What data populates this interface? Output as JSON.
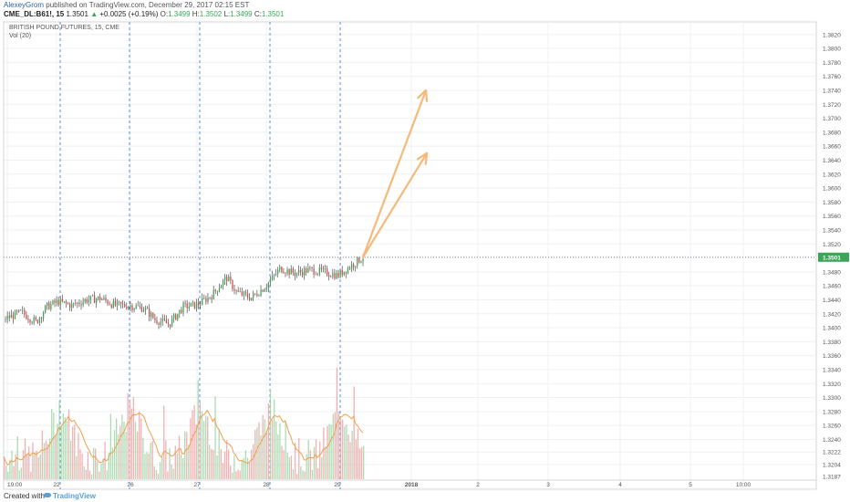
{
  "header": {
    "author": "AlexeyGrom",
    "published": " published on TradingView.com, December 29, 2017 02:15 EST",
    "symbol": "CME_DL:B61!, 15",
    "last": "1.3501",
    "change_arrow": "▲",
    "change": "+0.0025 (+0.19%)",
    "o_label": "O:",
    "o_val": "1.3499",
    "h_label": "H:",
    "h_val": "1.3502",
    "l_label": "L:",
    "l_val": "1.3499",
    "c_label": "C:",
    "c_val": "1.3501"
  },
  "legend": {
    "title": "BRITISH POUND FUTURES, 15, CME",
    "vol": "Vol (20)"
  },
  "footer": {
    "created": "Created with",
    "brand": "TradingView"
  },
  "chart_data": {
    "type": "candlestick",
    "title": "BRITISH POUND FUTURES, 15, CME",
    "ylim": [
      1.3187,
      1.3838
    ],
    "y_ticks": [
      1.3204,
      1.3222,
      1.324,
      1.326,
      1.328,
      1.33,
      1.332,
      1.334,
      1.336,
      1.338,
      1.34,
      1.342,
      1.344,
      1.346,
      1.348,
      1.35,
      1.352,
      1.354,
      1.356,
      1.358,
      1.36,
      1.362,
      1.364,
      1.366,
      1.368,
      1.37,
      1.372,
      1.374,
      1.376,
      1.378,
      1.38,
      1.382
    ],
    "y_bottom_label": "1.3187",
    "last_price_label": "1.3501",
    "last_price": 1.3501,
    "x_labels": [
      "19:00",
      "22",
      "26",
      "27",
      "28",
      "29",
      "2018",
      "2",
      "3",
      "4",
      "5",
      "10:00"
    ],
    "session_breaks": [
      "22",
      "26",
      "27",
      "28",
      "29"
    ],
    "price_path": [
      {
        "t": 0.0,
        "p": 1.3412
      },
      {
        "t": 0.05,
        "p": 1.3422
      },
      {
        "t": 0.09,
        "p": 1.3408
      },
      {
        "t": 0.12,
        "p": 1.343
      },
      {
        "t": 0.15,
        "p": 1.3437
      },
      {
        "t": 0.19,
        "p": 1.3432
      },
      {
        "t": 0.23,
        "p": 1.344
      },
      {
        "t": 0.27,
        "p": 1.3442
      },
      {
        "t": 0.31,
        "p": 1.3432
      },
      {
        "t": 0.35,
        "p": 1.3432
      },
      {
        "t": 0.39,
        "p": 1.3428
      },
      {
        "t": 0.42,
        "p": 1.3412
      },
      {
        "t": 0.46,
        "p": 1.3405
      },
      {
        "t": 0.5,
        "p": 1.343
      },
      {
        "t": 0.54,
        "p": 1.3433
      },
      {
        "t": 0.58,
        "p": 1.3447
      },
      {
        "t": 0.62,
        "p": 1.3472
      },
      {
        "t": 0.65,
        "p": 1.345
      },
      {
        "t": 0.69,
        "p": 1.3443
      },
      {
        "t": 0.73,
        "p": 1.346
      },
      {
        "t": 0.77,
        "p": 1.3485
      },
      {
        "t": 0.81,
        "p": 1.3478
      },
      {
        "t": 0.85,
        "p": 1.3483
      },
      {
        "t": 0.89,
        "p": 1.348
      },
      {
        "t": 0.93,
        "p": 1.3475
      },
      {
        "t": 0.97,
        "p": 1.349
      },
      {
        "t": 1.0,
        "p": 1.3501
      }
    ],
    "projection_arrows": [
      {
        "from": 1.3501,
        "to": 1.374
      },
      {
        "from": 1.3501,
        "to": 1.365
      }
    ],
    "volume_indicator": "Vol (20)",
    "colors": {
      "up": "#3aa657",
      "down": "#d64b4b",
      "arrow": "#f5b97a",
      "ma": "#f0a04b",
      "session": "#5b8fd6"
    }
  }
}
